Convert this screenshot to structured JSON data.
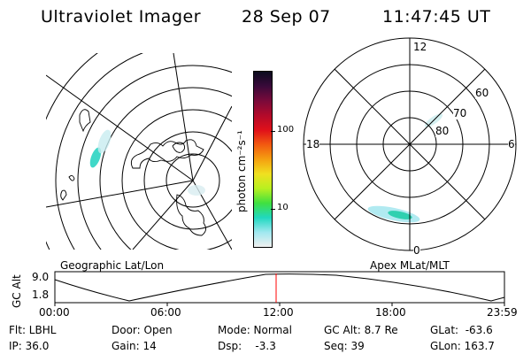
{
  "header": {
    "instrument": "Ultraviolet Imager",
    "date": "28 Sep 07",
    "time": "11:47:45 UT"
  },
  "left_panel": {
    "caption": "Geographic Lat/Lon"
  },
  "colorbar": {
    "label": "photon cm⁻²s⁻¹",
    "ticks": [
      "100",
      "10"
    ],
    "colors": [
      "#0b0b1e",
      "#3a0a3a",
      "#7a0a3a",
      "#b30a2a",
      "#e0101a",
      "#f25a10",
      "#f5a010",
      "#f0e020",
      "#b8f020",
      "#40e040",
      "#20d8c0",
      "#a0e8f0",
      "#f0f0f0"
    ]
  },
  "right_panel": {
    "caption": "Apex MLat/MLT",
    "mlt_labels": {
      "top": "12",
      "left": "18",
      "right": "6",
      "bottom": "0"
    },
    "lat_labels": [
      "60",
      "70",
      "80"
    ]
  },
  "altitude_plot": {
    "ylabel": "GC Alt",
    "yticks": [
      "9.0",
      "1.8"
    ],
    "xticks": [
      "00:00",
      "06:00",
      "12:00",
      "18:00",
      "23:59"
    ],
    "marker_color": "#ff0000"
  },
  "info": {
    "flt": "Flt: LBHL",
    "ip": "IP: 36.0",
    "door": "Door: Open",
    "gain": "Gain: 14",
    "mode": "Mode: Normal",
    "dsp": "Dsp:    -3.3",
    "gcalt": "GC Alt: 8.7 Re",
    "seq": "Seq: 39",
    "glat": "GLat:  -63.6",
    "glon": "GLon: 163.7"
  }
}
